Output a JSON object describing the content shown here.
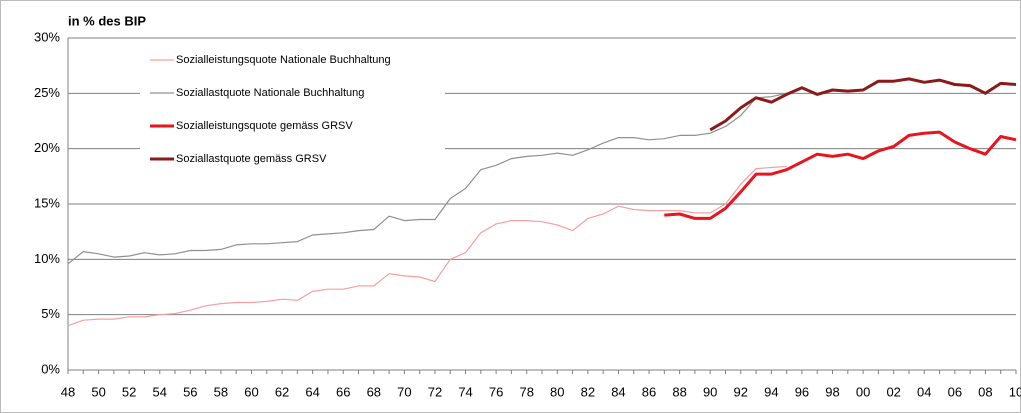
{
  "chart_data": {
    "type": "line",
    "y_label": "in % des BIP",
    "categories": [
      "48",
      null,
      "50",
      null,
      "52",
      null,
      "54",
      null,
      "56",
      null,
      "58",
      null,
      "60",
      null,
      "62",
      null,
      "64",
      null,
      "66",
      null,
      "68",
      null,
      "70",
      null,
      "72",
      null,
      "74",
      null,
      "76",
      null,
      "78",
      null,
      "80",
      null,
      "82",
      null,
      "84",
      null,
      "86",
      null,
      "88",
      null,
      "90",
      null,
      "92",
      null,
      "94",
      null,
      "96",
      null,
      "98",
      null,
      "00",
      null,
      "02",
      null,
      "04",
      null,
      "06",
      null,
      "08",
      null,
      "10"
    ],
    "series": [
      {
        "name": "Sozialleistungsquote  Nationale Buchhaltung",
        "color": "#f4a0a0",
        "width": 1.2,
        "values": [
          4.0,
          4.5,
          4.6,
          4.6,
          4.8,
          4.8,
          5.0,
          5.1,
          5.4,
          5.8,
          6.0,
          6.1,
          6.1,
          6.2,
          6.4,
          6.3,
          7.1,
          7.3,
          7.3,
          7.6,
          7.6,
          8.7,
          8.5,
          8.4,
          8.0,
          10.0,
          10.6,
          12.4,
          13.2,
          13.5,
          13.5,
          13.4,
          13.1,
          12.6,
          13.7,
          14.1,
          14.8,
          14.5,
          14.4,
          14.4,
          14.4,
          14.2,
          14.2,
          15.0,
          16.8,
          18.2,
          18.3,
          18.4,
          null,
          null,
          null,
          null,
          null,
          null,
          null,
          null,
          null,
          null,
          null,
          null,
          null,
          null,
          null
        ]
      },
      {
        "name": "Soziallastquote Nationale Buchhaltung",
        "color": "#909090",
        "width": 1.2,
        "values": [
          9.6,
          10.7,
          10.5,
          10.2,
          10.3,
          10.6,
          10.4,
          10.5,
          10.8,
          10.8,
          10.9,
          11.3,
          11.4,
          11.4,
          11.5,
          11.6,
          12.2,
          12.3,
          12.4,
          12.6,
          12.7,
          13.9,
          13.5,
          13.6,
          13.6,
          15.5,
          16.4,
          18.1,
          18.5,
          19.1,
          19.3,
          19.4,
          19.6,
          19.4,
          19.9,
          20.5,
          21.0,
          21.0,
          20.8,
          20.9,
          21.2,
          21.2,
          21.4,
          22.0,
          23.0,
          24.6,
          24.7,
          25.0,
          null,
          null,
          null,
          null,
          null,
          null,
          null,
          null,
          null,
          null,
          null,
          null,
          null,
          null,
          null
        ]
      },
      {
        "name": "Sozialleistungsquote  gemäss GRSV",
        "color": "#e8141e",
        "width": 3,
        "values": [
          null,
          null,
          null,
          null,
          null,
          null,
          null,
          null,
          null,
          null,
          null,
          null,
          null,
          null,
          null,
          null,
          null,
          null,
          null,
          null,
          null,
          null,
          null,
          null,
          null,
          null,
          null,
          null,
          null,
          null,
          null,
          null,
          null,
          null,
          null,
          null,
          null,
          null,
          null,
          14.0,
          14.1,
          13.7,
          13.7,
          14.6,
          16.1,
          17.7,
          17.7,
          18.1,
          18.8,
          19.5,
          19.3,
          19.5,
          19.1,
          19.8,
          20.2,
          21.2,
          21.4,
          21.5,
          20.6,
          20.0,
          19.5,
          21.1,
          20.8
        ]
      },
      {
        "name": "Soziallastquote gemäss GRSV",
        "color": "#8b1a1a",
        "width": 3,
        "values": [
          null,
          null,
          null,
          null,
          null,
          null,
          null,
          null,
          null,
          null,
          null,
          null,
          null,
          null,
          null,
          null,
          null,
          null,
          null,
          null,
          null,
          null,
          null,
          null,
          null,
          null,
          null,
          null,
          null,
          null,
          null,
          null,
          null,
          null,
          null,
          null,
          null,
          null,
          null,
          null,
          null,
          null,
          21.7,
          22.5,
          23.7,
          24.6,
          24.2,
          24.9,
          25.5,
          24.9,
          25.3,
          25.2,
          25.3,
          26.1,
          26.1,
          26.3,
          26.0,
          26.2,
          25.8,
          25.7,
          25.0,
          25.9,
          25.8
        ]
      }
    ],
    "ylim": [
      0,
      30
    ],
    "yticks": [
      {
        "value": 0,
        "label": "0%"
      },
      {
        "value": 5,
        "label": "5%"
      },
      {
        "value": 10,
        "label": "10%"
      },
      {
        "value": 15,
        "label": "15%"
      },
      {
        "value": 20,
        "label": "20%"
      },
      {
        "value": 25,
        "label": "25%"
      },
      {
        "value": 30,
        "label": "30%"
      }
    ],
    "grid": true,
    "legend": "upper left"
  }
}
